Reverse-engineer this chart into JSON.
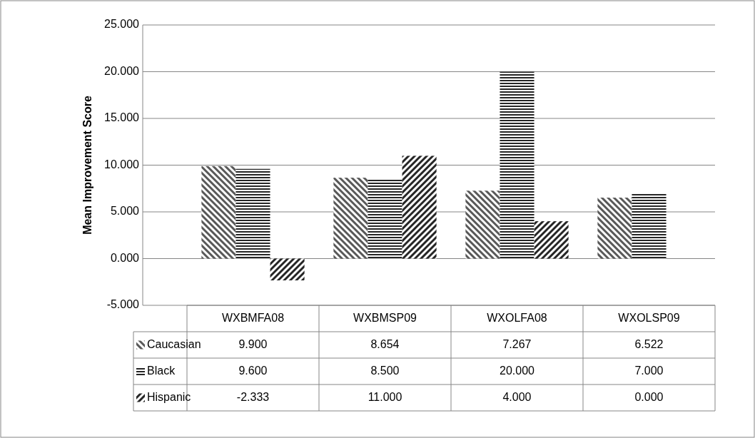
{
  "chart_data": {
    "type": "bar",
    "ylabel": "Mean Improvement Score",
    "categories": [
      "WXBMFA08",
      "WXBMSP09",
      "WXOLFA08",
      "WXOLSP09"
    ],
    "series": [
      {
        "name": "Caucasian",
        "color": "#595959",
        "values": [
          9.9,
          8.654,
          7.267,
          6.522
        ],
        "value_labels": [
          "9.900",
          "8.654",
          "7.267",
          "6.522"
        ]
      },
      {
        "name": "Black",
        "color": "#262626",
        "values": [
          9.6,
          8.5,
          20,
          7
        ],
        "value_labels": [
          "9.600",
          "8.500",
          "20.000",
          "7.000"
        ]
      },
      {
        "name": "Hispanic",
        "color": "#262626",
        "values": [
          -2.333,
          11,
          4,
          0
        ],
        "value_labels": [
          "-2.333",
          "11.000",
          "4.000",
          "0.000"
        ]
      }
    ],
    "ylim": [
      -5,
      25
    ],
    "yticks": [
      {
        "value": -5,
        "label": "-5.000"
      },
      {
        "value": 0,
        "label": "0.000"
      },
      {
        "value": 5,
        "label": "5.000"
      },
      {
        "value": 10,
        "label": "10.000"
      },
      {
        "value": 15,
        "label": "15.000"
      },
      {
        "value": 20,
        "label": "20.000"
      },
      {
        "value": 25,
        "label": "25.000"
      }
    ],
    "grid": "y",
    "legend": "bottom"
  }
}
